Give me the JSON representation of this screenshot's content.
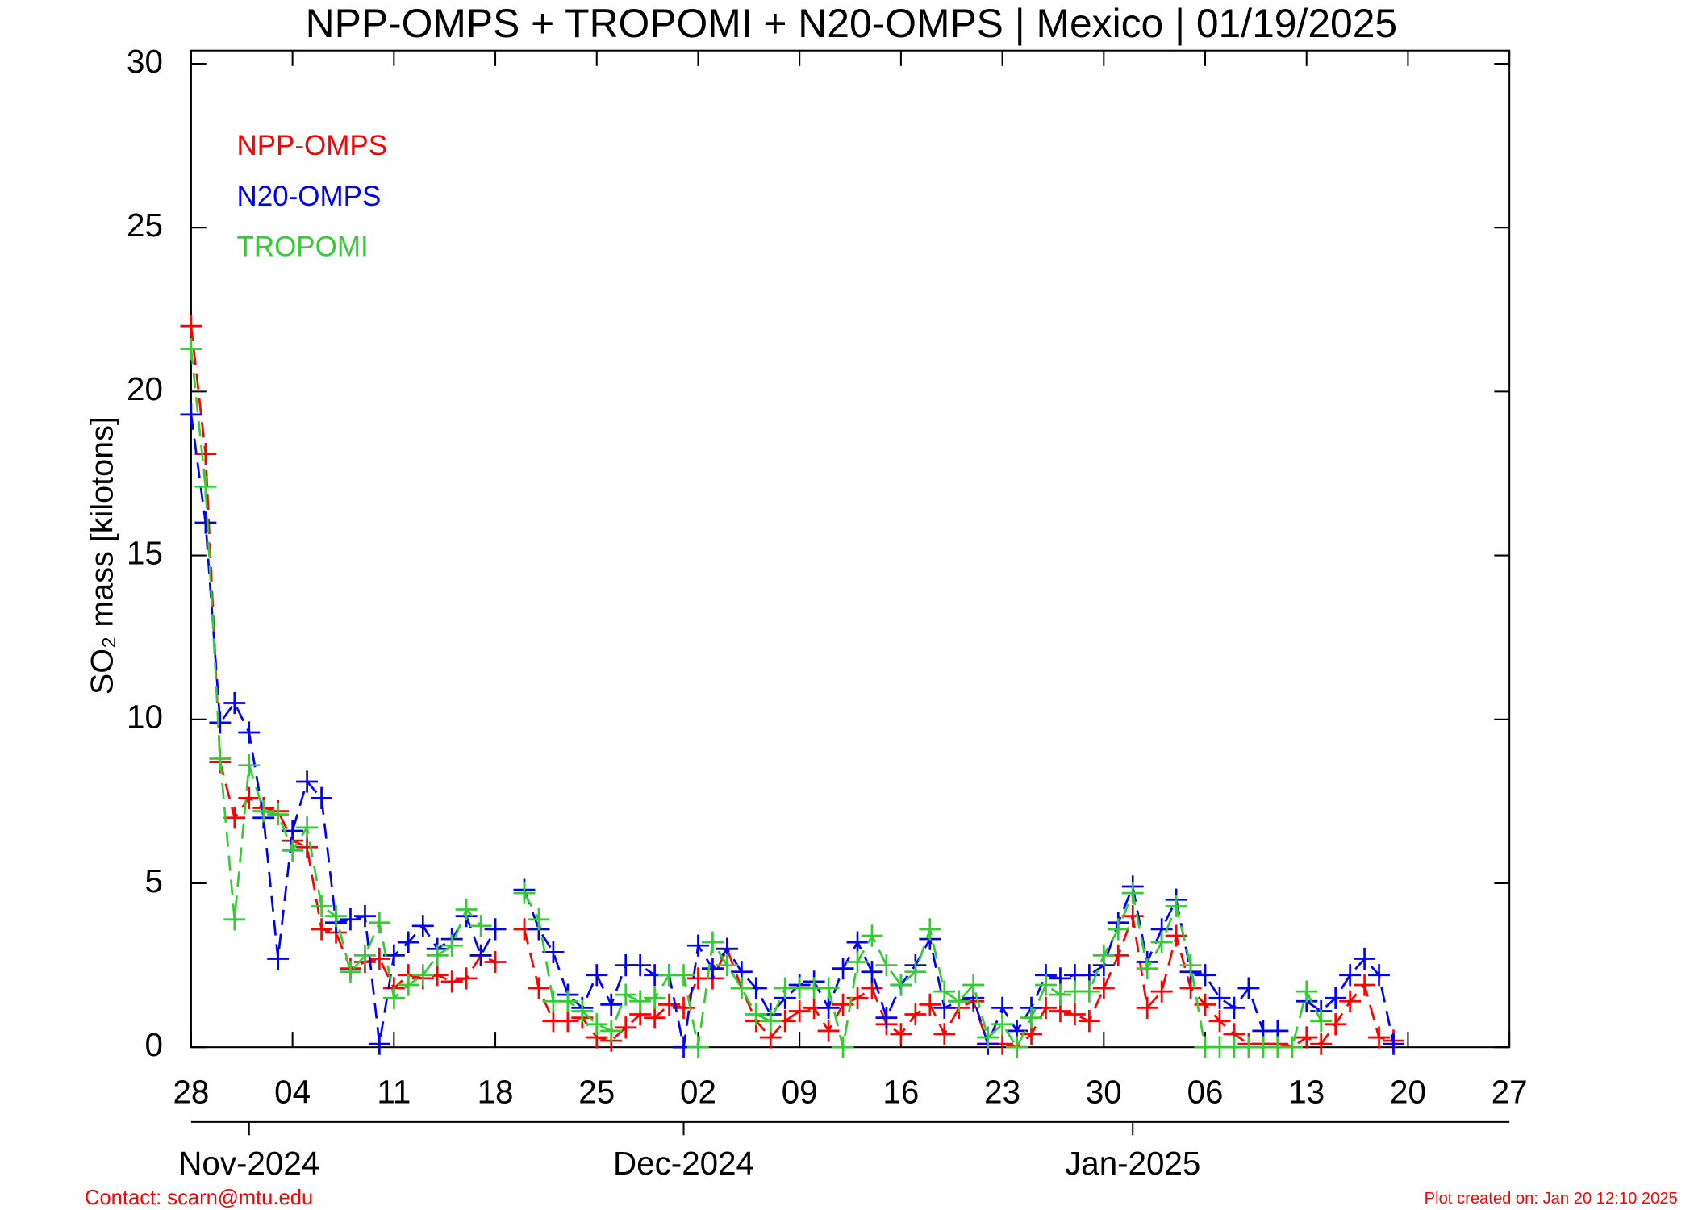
{
  "chart_data": {
    "type": "line",
    "title": "NPP-OMPS + TROPOMI + N20-OMPS | Mexico | 01/19/2025",
    "y_label": "SO₂ mass [kilotons]",
    "footer_left": "Contact: scarn@mtu.edu",
    "footer_right": "Plot created on: Jan 20 12:10 2025",
    "legend_position": "upper-left",
    "x": [
      "2024-10-28",
      "2024-10-29",
      "2024-10-30",
      "2024-10-31",
      "2024-11-01",
      "2024-11-02",
      "2024-11-03",
      "2024-11-04",
      "2024-11-05",
      "2024-11-06",
      "2024-11-07",
      "2024-11-08",
      "2024-11-09",
      "2024-11-10",
      "2024-11-11",
      "2024-11-12",
      "2024-11-13",
      "2024-11-14",
      "2024-11-15",
      "2024-11-16",
      "2024-11-17",
      "2024-11-18",
      "2024-11-19",
      "2024-11-20",
      "2024-11-21",
      "2024-11-22",
      "2024-11-23",
      "2024-11-24",
      "2024-11-25",
      "2024-11-26",
      "2024-11-27",
      "2024-11-28",
      "2024-11-29",
      "2024-11-30",
      "2024-12-01",
      "2024-12-02",
      "2024-12-03",
      "2024-12-04",
      "2024-12-05",
      "2024-12-06",
      "2024-12-07",
      "2024-12-08",
      "2024-12-09",
      "2024-12-10",
      "2024-12-11",
      "2024-12-12",
      "2024-12-13",
      "2024-12-14",
      "2024-12-15",
      "2024-12-16",
      "2024-12-17",
      "2024-12-18",
      "2024-12-19",
      "2024-12-20",
      "2024-12-21",
      "2024-12-22",
      "2024-12-23",
      "2024-12-24",
      "2024-12-25",
      "2024-12-26",
      "2024-12-27",
      "2024-12-28",
      "2024-12-29",
      "2024-12-30",
      "2024-12-31",
      "2025-01-01",
      "2025-01-02",
      "2025-01-03",
      "2025-01-04",
      "2025-01-05",
      "2025-01-06",
      "2025-01-07",
      "2025-01-08",
      "2025-01-09",
      "2025-01-10",
      "2025-01-11",
      "2025-01-12",
      "2025-01-13",
      "2025-01-14",
      "2025-01-15",
      "2025-01-16",
      "2025-01-17",
      "2025-01-18",
      "2025-01-19"
    ],
    "series": [
      {
        "name": "NPP-OMPS",
        "color": "#ff0000",
        "values": [
          22.0,
          18.1,
          8.7,
          7.0,
          7.6,
          7.3,
          7.2,
          6.3,
          6.1,
          3.6,
          3.5,
          2.4,
          2.6,
          2.7,
          1.8,
          2.2,
          2.1,
          2.2,
          2.0,
          2.1,
          2.8,
          2.6,
          null,
          3.6,
          1.8,
          0.8,
          0.8,
          0.9,
          0.3,
          0.2,
          0.6,
          1.0,
          0.9,
          1.3,
          1.2,
          2.1,
          2.1,
          3.0,
          1.8,
          0.8,
          0.3,
          0.8,
          1.1,
          1.2,
          0.5,
          1.3,
          1.5,
          1.8,
          0.7,
          0.4,
          1.0,
          1.3,
          0.4,
          1.2,
          1.4,
          0.1,
          0.1,
          0.0,
          0.4,
          1.2,
          1.1,
          1.0,
          0.8,
          1.8,
          2.8,
          4.0,
          1.2,
          1.7,
          3.4,
          1.8,
          1.3,
          0.8,
          0.4,
          0.1,
          0.1,
          0.1,
          0.0,
          0.3,
          0.1,
          0.7,
          1.4,
          1.9,
          0.3,
          0.2
        ]
      },
      {
        "name": "N20-OMPS",
        "color": "#0000ff",
        "values": [
          19.3,
          16.0,
          9.9,
          10.5,
          9.6,
          7.0,
          2.7,
          6.6,
          8.1,
          7.6,
          3.8,
          3.9,
          4.0,
          0.1,
          2.8,
          3.2,
          3.7,
          3.0,
          3.3,
          4.0,
          2.8,
          3.6,
          null,
          4.8,
          3.6,
          2.9,
          1.6,
          1.2,
          2.2,
          1.3,
          2.5,
          2.5,
          2.2,
          2.2,
          0.0,
          3.1,
          2.4,
          3.0,
          2.3,
          1.8,
          1.0,
          1.5,
          1.9,
          2.0,
          1.2,
          2.4,
          3.2,
          2.3,
          0.9,
          1.9,
          2.5,
          3.3,
          1.2,
          1.4,
          1.5,
          0.1,
          1.2,
          0.5,
          1.2,
          2.2,
          2.1,
          2.2,
          2.2,
          2.5,
          3.8,
          4.9,
          2.6,
          3.6,
          4.5,
          2.3,
          2.2,
          1.5,
          1.2,
          1.8,
          0.5,
          0.5,
          null,
          1.4,
          1.1,
          1.5,
          2.2,
          2.7,
          2.2,
          0.1
        ]
      },
      {
        "name": "TROPOMI",
        "color": "#33cc33",
        "values": [
          21.3,
          17.1,
          8.8,
          3.9,
          8.6,
          7.2,
          7.1,
          6.0,
          6.7,
          4.3,
          4.0,
          2.3,
          2.8,
          3.8,
          1.5,
          1.9,
          2.2,
          2.8,
          3.1,
          4.2,
          3.7,
          null,
          null,
          4.7,
          3.9,
          1.4,
          1.4,
          1.1,
          0.7,
          0.5,
          1.6,
          1.4,
          1.5,
          2.2,
          2.2,
          0.0,
          3.2,
          2.5,
          1.8,
          1.0,
          0.8,
          1.8,
          1.8,
          1.8,
          1.8,
          0.0,
          2.6,
          3.4,
          2.5,
          1.9,
          2.3,
          3.6,
          1.7,
          1.4,
          1.9,
          0.3,
          0.7,
          0.0,
          0.9,
          1.9,
          1.6,
          1.7,
          1.7,
          2.8,
          3.6,
          4.7,
          2.4,
          3.2,
          4.3,
          2.5,
          0.0,
          0.0,
          0.0,
          0.0,
          0.0,
          0.0,
          0.0,
          1.7,
          0.8,
          null,
          null,
          null,
          null,
          null
        ]
      }
    ],
    "xlim": [
      "2024-10-28",
      "2025-01-27"
    ],
    "xticks": [
      {
        "value": "2024-10-28",
        "label": "28"
      },
      {
        "value": "2024-11-04",
        "label": "04"
      },
      {
        "value": "2024-11-11",
        "label": "11"
      },
      {
        "value": "2024-11-18",
        "label": "18"
      },
      {
        "value": "2024-11-25",
        "label": "25"
      },
      {
        "value": "2024-12-02",
        "label": "02"
      },
      {
        "value": "2024-12-09",
        "label": "09"
      },
      {
        "value": "2024-12-16",
        "label": "16"
      },
      {
        "value": "2024-12-23",
        "label": "23"
      },
      {
        "value": "2024-12-30",
        "label": "30"
      },
      {
        "value": "2025-01-06",
        "label": "06"
      },
      {
        "value": "2025-01-13",
        "label": "13"
      },
      {
        "value": "2025-01-20",
        "label": "20"
      },
      {
        "value": "2025-01-27",
        "label": "27"
      }
    ],
    "month_ticks": [
      {
        "value": "2024-11-01",
        "label": "Nov-2024"
      },
      {
        "value": "2024-12-01",
        "label": "Dec-2024"
      },
      {
        "value": "2025-01-01",
        "label": "Jan-2025"
      }
    ],
    "ylim": [
      0,
      30.4
    ],
    "yticks": [
      0,
      5,
      10,
      15,
      20,
      25,
      30
    ],
    "grid": false
  }
}
